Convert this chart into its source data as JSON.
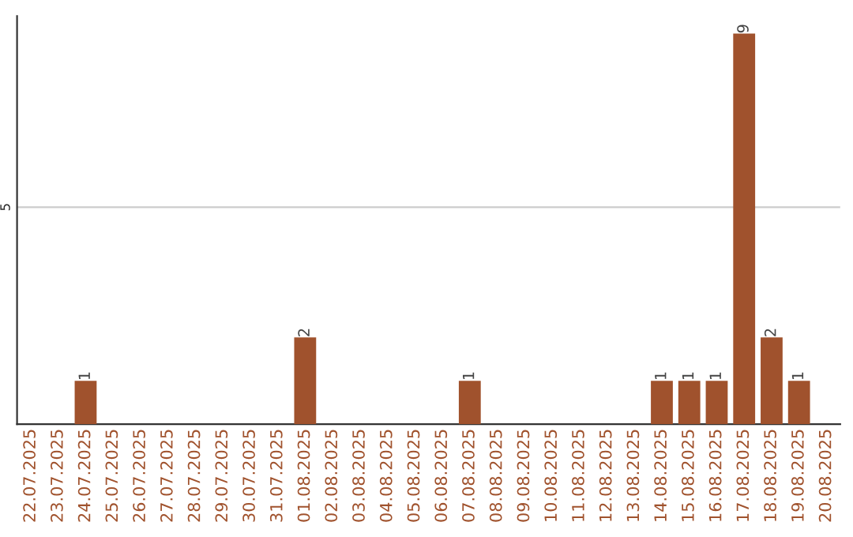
{
  "chart_data": {
    "type": "bar",
    "categories": [
      "22.07.2025",
      "23.07.2025",
      "24.07.2025",
      "25.07.2025",
      "26.07.2025",
      "27.07.2025",
      "28.07.2025",
      "29.07.2025",
      "30.07.2025",
      "31.07.2025",
      "01.08.2025",
      "02.08.2025",
      "03.08.2025",
      "04.08.2025",
      "05.08.2025",
      "06.08.2025",
      "07.08.2025",
      "08.08.2025",
      "09.08.2025",
      "10.08.2025",
      "11.08.2025",
      "12.08.2025",
      "13.08.2025",
      "14.08.2025",
      "15.08.2025",
      "16.08.2025",
      "17.08.2025",
      "18.08.2025",
      "19.08.2025",
      "20.08.2025"
    ],
    "values": [
      0,
      0,
      1,
      0,
      0,
      0,
      0,
      0,
      0,
      0,
      2,
      0,
      0,
      0,
      0,
      0,
      1,
      0,
      0,
      0,
      0,
      0,
      0,
      1,
      1,
      1,
      9,
      2,
      1,
      0
    ],
    "value_labels": [
      null,
      null,
      "1",
      null,
      null,
      null,
      null,
      null,
      null,
      null,
      "2",
      null,
      null,
      null,
      null,
      null,
      "1",
      null,
      null,
      null,
      null,
      null,
      null,
      "1",
      "1",
      "1",
      "9",
      "2",
      "1",
      null
    ],
    "color": "#a0522d",
    "ylim": [
      0,
      9.4
    ],
    "yticks": [
      5
    ],
    "grid": "y"
  }
}
